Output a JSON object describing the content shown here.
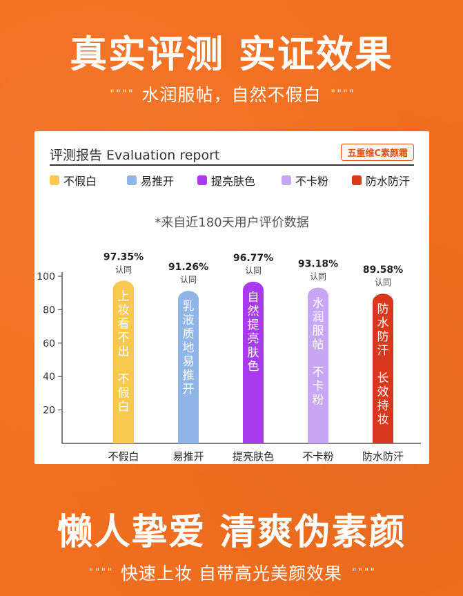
{
  "header": {
    "title": "真实评测 实证效果",
    "subtitle": "水润服帖，自然不假白",
    "deco_left": "\" \" \" \"",
    "deco_right": "\" \" \" \""
  },
  "panel": {
    "report_title": "评测报告 Evaluation report",
    "product_badge": "五重维C素颜霜",
    "note": "*来自近180天用户评价数据"
  },
  "legend": [
    {
      "label": "不假白",
      "color": "#f7c94f"
    },
    {
      "label": "易推开",
      "color": "#8fb6e7"
    },
    {
      "label": "提亮肤色",
      "color": "#a93af0"
    },
    {
      "label": "不卡粉",
      "color": "#c7a7f4"
    },
    {
      "label": "防水防汗",
      "color": "#d9381c"
    }
  ],
  "chart_data": {
    "type": "bar",
    "categories": [
      "不假白",
      "易推开",
      "提亮肤色",
      "不卡粉",
      "防水防汗"
    ],
    "values": [
      97.35,
      91.26,
      96.77,
      93.18,
      89.58
    ],
    "value_labels": [
      "97.35%",
      "91.26%",
      "96.77%",
      "93.18%",
      "89.58%"
    ],
    "value_sublabel": "认同",
    "bar_texts": [
      [
        "上",
        "妆",
        "看",
        "不",
        "出",
        "",
        "不",
        "假",
        "白"
      ],
      [
        "乳",
        "液",
        "质",
        "地",
        "易",
        "推",
        "开"
      ],
      [
        "自",
        "然",
        "提",
        "亮",
        "肤",
        "色"
      ],
      [
        "水",
        "润",
        "服",
        "帖",
        "",
        "不",
        "卡",
        "粉"
      ],
      [
        "防",
        "水",
        "防",
        "汗",
        "",
        "长",
        "效",
        "持",
        "妆"
      ]
    ],
    "colors": [
      "#f7c94f",
      "#8fb6e7",
      "#a93af0",
      "#c7a7f4",
      "#d9381c"
    ],
    "yticks": [
      20,
      40,
      60,
      80,
      100
    ],
    "ylim": [
      0,
      100
    ],
    "grid": false
  },
  "footer": {
    "title": "懒人挚爱 清爽伪素颜",
    "subtitle": "快速上妆 自带高光美颜效果",
    "deco_left": "\" \" \" \"",
    "deco_right": "\" \" \" \""
  }
}
